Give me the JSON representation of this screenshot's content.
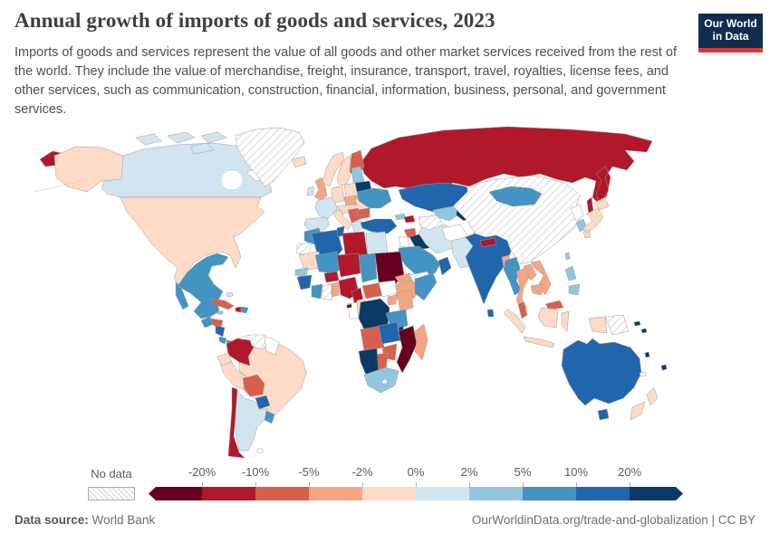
{
  "header": {
    "title": "Annual growth of imports of goods and services, 2023",
    "subtitle": "Imports of goods and services represent the value of all goods and other market services received from the rest of the world. They include the value of merchandise, freight, insurance, transport, travel, royalties, license fees, and other services, such as communication, construction, financial, information, business, personal, and government services.",
    "logo": {
      "line1": "Our World",
      "line2": "in Data",
      "bg_color": "#102d50",
      "bar_color": "#d93838"
    }
  },
  "legend": {
    "no_data_label": "No data",
    "ticks": [
      "-20%",
      "-10%",
      "-5%",
      "-2%",
      "0%",
      "2%",
      "5%",
      "10%",
      "20%"
    ],
    "colors": [
      "#67001f",
      "#b2182b",
      "#d6604d",
      "#f4a582",
      "#fddbc7",
      "#d1e5f0",
      "#92c5de",
      "#4393c3",
      "#2166ac",
      "#0b3a67"
    ]
  },
  "footer": {
    "source_label": "Data source:",
    "source_value": "World Bank",
    "right_text": "OurWorldinData.org/trade-and-globalization | CC BY"
  },
  "chart_data": {
    "type": "choropleth_map",
    "title": "Annual growth of imports of goods and services, 2023",
    "unit": "%",
    "legend_position": "bottom",
    "buckets": [
      {
        "label": "< -20%",
        "color": "#67001f"
      },
      {
        "label": "-20% to -10%",
        "color": "#b2182b"
      },
      {
        "label": "-10% to -5%",
        "color": "#d6604d"
      },
      {
        "label": "-5% to -2%",
        "color": "#f4a582"
      },
      {
        "label": "-2% to 0%",
        "color": "#fddbc7"
      },
      {
        "label": "0% to 2%",
        "color": "#d1e5f0"
      },
      {
        "label": "2% to 5%",
        "color": "#92c5de"
      },
      {
        "label": "5% to 10%",
        "color": "#4393c3"
      },
      {
        "label": "10% to 20%",
        "color": "#2166ac"
      },
      {
        "label": "> 20%",
        "color": "#0b3a67"
      },
      {
        "label": "No data",
        "color": "hatched"
      }
    ],
    "countries": {
      "United States": "-2% to 0%",
      "Canada": "0% to 2%",
      "Greenland": "No data",
      "Iceland": "-2% to 0%",
      "Mexico": "5% to 10%",
      "Cuba": "-10% to -5%",
      "Haiti": "-20% to -10%",
      "Dominican Republic": "5% to 10%",
      "Guatemala": "5% to 10%",
      "Honduras": "-10% to -5%",
      "Nicaragua": "10% to 20%",
      "Costa Rica": "5% to 10%",
      "Panama": "5% to 10%",
      "Colombia": "-20% to -10%",
      "Venezuela": "No data",
      "Ecuador": "-2% to 0%",
      "Peru": "-2% to 0%",
      "Brazil": "-2% to 0%",
      "Bolivia": "-10% to -5%",
      "Paraguay": "10% to 20%",
      "Chile": "-20% to -10%",
      "Argentina": "0% to 2%",
      "Uruguay": "5% to 10%",
      "United Kingdom": "-5% to -2%",
      "Ireland": "0% to 2%",
      "France": "0% to 2%",
      "Spain": "0% to 2%",
      "Germany": "-2% to 0%",
      "Netherlands": "-20% to -10%",
      "Poland": "-2% to 0%",
      "Italy": "-2% to 0%",
      "Norway": "-2% to 0%",
      "Sweden": "-2% to 0%",
      "Finland": "-10% to -5%",
      "Denmark": "-2% to 0%",
      "Greece": "0% to 2%",
      "Romania": "-2% to 0%",
      "Bulgaria": "-10% to -5%",
      "Serbia": "-10% to -5%",
      "Ukraine": "5% to 10%",
      "Belarus": "> 20%",
      "Russia": "-20% to -10%",
      "Turkey": "10% to 20%",
      "Syria": "-10% to -5%",
      "Iraq": "> 20%",
      "Iran": "0% to 2%",
      "Saudi Arabia": "5% to 10%",
      "Yemen": "No data",
      "Oman": "10% to 20%",
      "Kazakhstan": "10% to 20%",
      "Uzbekistan": "2% to 5%",
      "Kyrgyzstan": "> 20%",
      "Turkmenistan": "No data",
      "Afghanistan": "No data",
      "Pakistan": "0% to 2%",
      "India": "10% to 20%",
      "Nepal": "-20% to -10%",
      "Bangladesh": "-5% to -2%",
      "Sri Lanka": "10% to 20%",
      "China": "No data",
      "Mongolia": "5% to 10%",
      "North Korea": "No data",
      "South Korea": "2% to 5%",
      "Japan": "-2% to 0%",
      "Myanmar": "5% to 10%",
      "Thailand": "-5% to -2%",
      "Laos": "-5% to -2%",
      "Vietnam": "-5% to -2%",
      "Cambodia": "-5% to -2%",
      "Malaysia": "-10% to -5%",
      "Indonesia": "-2% to 0%",
      "Philippines": "2% to 5%",
      "Papua New Guinea": "No data",
      "Australia": "10% to 20%",
      "New Zealand": "-2% to 0%",
      "Fiji": "> 20%",
      "Solomon Islands": "> 20%",
      "Morocco": "5% to 10%",
      "Algeria": "10% to 20%",
      "Tunisia": "10% to 20%",
      "Libya": "-20% to -10%",
      "Egypt": "0% to 2%",
      "Western Sahara": "No data",
      "Mauritania": "-2% to 0%",
      "Senegal": "2% to 5%",
      "Guinea": "10% to 20%",
      "Cote d'Ivoire": "5% to 10%",
      "Ghana": "No data",
      "Benin": "-5% to -2%",
      "Mali": "5% to 10%",
      "Burkina Faso": "-20% to -10%",
      "Niger": "-20% to -10%",
      "Nigeria": "-20% to -10%",
      "Chad": "5% to 10%",
      "Sudan": "< -20%",
      "Eritrea": "-5% to -2%",
      "Ethiopia": "-5% to -2%",
      "Somalia": "5% to 10%",
      "Cameroon": "-20% to -10%",
      "Central African Republic": "-10% to -5%",
      "South Sudan": "No data",
      "Uganda": "-5% to -2%",
      "Kenya": "-5% to -2%",
      "Democratic Republic of Congo": "> 20%",
      "Congo": "-2% to 0%",
      "Equatorial Guinea": "< -20%",
      "Tanzania": "5% to 10%",
      "Angola": "-10% to -5%",
      "Zambia": "10% to 20%",
      "Malawi": "> 20%",
      "Mozambique": "< -20%",
      "Zimbabwe": "-10% to -5%",
      "Botswana": "-10% to -5%",
      "Namibia": "> 20%",
      "South Africa": "2% to 5%",
      "Madagascar": "-5% to -2%"
    }
  },
  "map": {
    "no_data_fill": "hatch",
    "missing_fill": "#ffffff",
    "country_buckets": {
      "russia": 1,
      "canada": 5,
      "arctic-islands": 5,
      "greenland": -1,
      "iceland": 4,
      "usa": 4,
      "mexico": 7,
      "cuba": 2,
      "haiti": 1,
      "dominican-republic": 7,
      "jamaica": 6,
      "bahamas": 5,
      "guatemala": 7,
      "honduras": 2,
      "nicaragua": 8,
      "costa-rica": 7,
      "panama": 7,
      "colombia": 1,
      "venezuela": -1,
      "guyana": -2,
      "ecuador": 4,
      "peru": 4,
      "brazil": 4,
      "bolivia": 2,
      "paraguay": 8,
      "chile": 1,
      "argentina": 5,
      "uruguay": 7,
      "falkland": -2,
      "norway": 4,
      "sweden": 4,
      "finland": 2,
      "denmark": 4,
      "uk": 3,
      "ireland": 5,
      "netherlands": 1,
      "france": 5,
      "spain": 5,
      "germany": 4,
      "poland": 4,
      "czechia-slovakia": 3,
      "austria-hungary": 4,
      "italy": 4,
      "serbia-balkans": 2,
      "greece": 5,
      "romania": 4,
      "bulgaria": 2,
      "baltics": 6,
      "belarus": 9,
      "ukraine": 7,
      "turkey": 8,
      "georgia": 6,
      "azerbaijan": 1,
      "syria": 2,
      "iraq": 9,
      "jordan": -2,
      "iran": 5,
      "saudi-arabia": 7,
      "yemen": -1,
      "oman": 8,
      "kazakhstan": 8,
      "uzbekistan": 6,
      "kyrgyzstan": 9,
      "turkmenistan": -1,
      "afghanistan": -2,
      "pakistan": 5,
      "india": 8,
      "nepal": 1,
      "sri-lanka": 8,
      "bangladesh": 3,
      "china": -1,
      "mongolia": 7,
      "north-korea": -2,
      "south-korea": 6,
      "japan": 4,
      "taiwan": 6,
      "myanmar": 7,
      "thailand": 3,
      "laos": 3,
      "vietnam": 3,
      "cambodia": 3,
      "malaysia": 2,
      "indonesia": 4,
      "papua-new-guinea": -1,
      "philippines": 6,
      "australia": 8,
      "new-zealand": 4,
      "solomon-islands": 9,
      "vanuatu": 9,
      "fiji": 9,
      "new-caledonia": -2,
      "morocco": 7,
      "western-sahara": -1,
      "mauritania": 4,
      "senegal": 6,
      "guinea": 8,
      "cote-divoire": 7,
      "ghana": -1,
      "benin-togo": 3,
      "mali": 7,
      "burkina-faso": 1,
      "niger": 1,
      "nigeria": 1,
      "chad": 7,
      "sudan": 0,
      "eritrea": 3,
      "ethiopia": 3,
      "somalia": 7,
      "cameroon": 1,
      "central-african-republic": 2,
      "south-sudan": -2,
      "uganda": 3,
      "kenya": 3,
      "dr-congo": 9,
      "gabon": -2,
      "congo": 4,
      "equatorial-guinea": 0,
      "tanzania": 7,
      "angola": 2,
      "zambia": 8,
      "malawi": 9,
      "mozambique": 0,
      "zimbabwe": 2,
      "botswana": 2,
      "namibia": 9,
      "south-africa": 6,
      "madagascar": 3,
      "lesotho": -2,
      "algeria": 8,
      "tunisia": 8,
      "libya": 1,
      "egypt": 5
    }
  }
}
